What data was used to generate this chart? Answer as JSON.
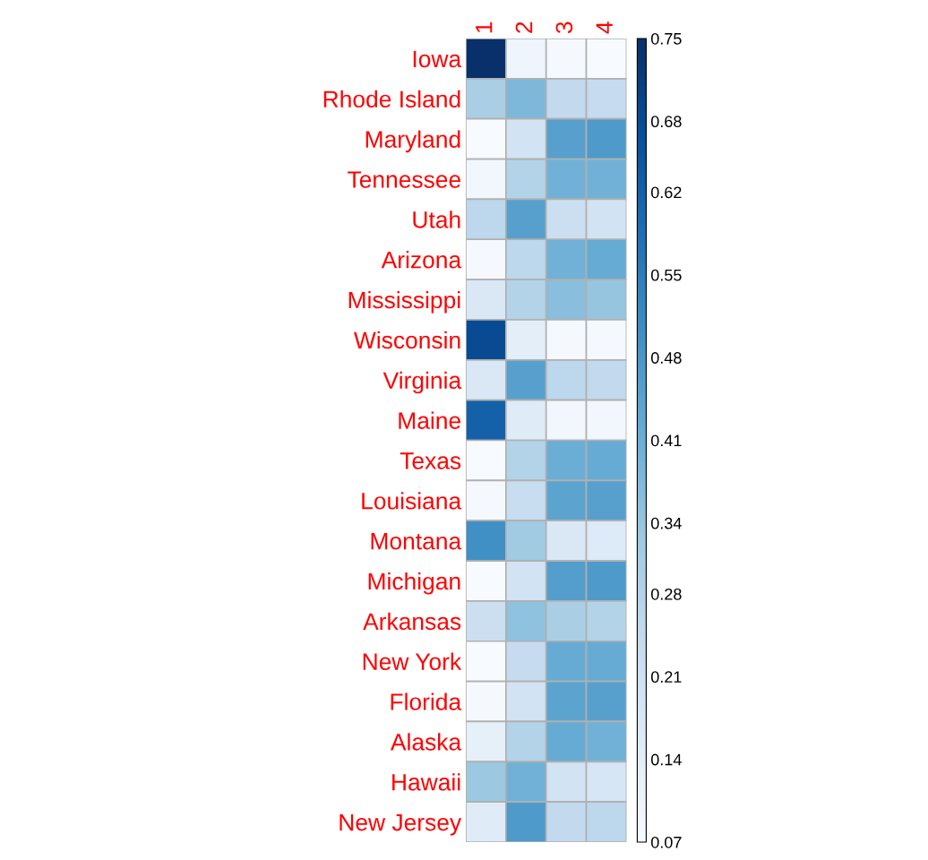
{
  "chart_data": {
    "type": "heatmap",
    "categories": [
      "1",
      "2",
      "3",
      "4"
    ],
    "y_categories": [
      "Iowa",
      "Rhode Island",
      "Maryland",
      "Tennessee",
      "Utah",
      "Arizona",
      "Mississippi",
      "Wisconsin",
      "Virginia",
      "Maine",
      "Texas",
      "Louisiana",
      "Montana",
      "Michigan",
      "Arkansas",
      "New York",
      "Florida",
      "Alaska",
      "Hawaii",
      "New Jersey"
    ],
    "cells": [
      [
        0.75,
        0.1,
        0.08,
        0.07
      ],
      [
        0.3,
        0.38,
        0.25,
        0.24
      ],
      [
        0.07,
        0.2,
        0.45,
        0.47
      ],
      [
        0.09,
        0.28,
        0.4,
        0.4
      ],
      [
        0.26,
        0.45,
        0.22,
        0.2
      ],
      [
        0.08,
        0.26,
        0.4,
        0.42
      ],
      [
        0.17,
        0.28,
        0.36,
        0.34
      ],
      [
        0.68,
        0.14,
        0.08,
        0.08
      ],
      [
        0.17,
        0.45,
        0.26,
        0.25
      ],
      [
        0.62,
        0.15,
        0.09,
        0.09
      ],
      [
        0.07,
        0.28,
        0.41,
        0.42
      ],
      [
        0.08,
        0.23,
        0.44,
        0.45
      ],
      [
        0.5,
        0.32,
        0.17,
        0.16
      ],
      [
        0.07,
        0.2,
        0.46,
        0.47
      ],
      [
        0.22,
        0.35,
        0.3,
        0.28
      ],
      [
        0.07,
        0.24,
        0.42,
        0.42
      ],
      [
        0.08,
        0.2,
        0.44,
        0.45
      ],
      [
        0.13,
        0.28,
        0.42,
        0.4
      ],
      [
        0.33,
        0.4,
        0.2,
        0.18
      ],
      [
        0.15,
        0.47,
        0.25,
        0.26
      ]
    ],
    "clim": [
      0.07,
      0.75
    ],
    "cticks": [
      0.07,
      0.14,
      0.21,
      0.28,
      0.34,
      0.41,
      0.48,
      0.55,
      0.62,
      0.68,
      0.75
    ]
  }
}
